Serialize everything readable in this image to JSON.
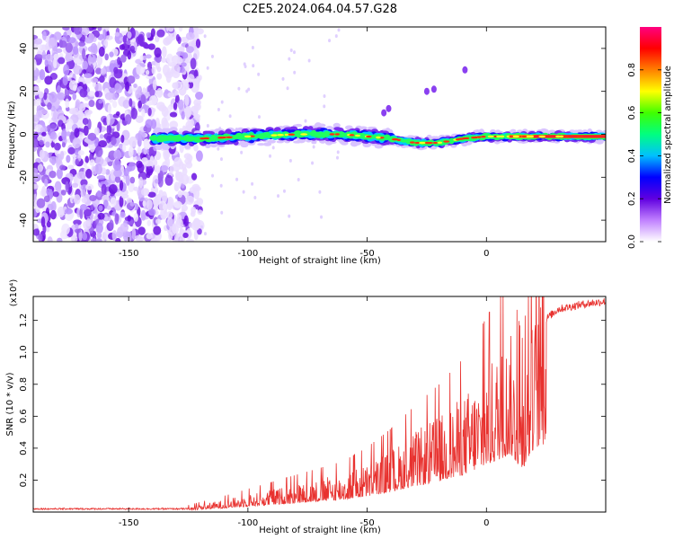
{
  "title": "C2E5.2024.064.04.57.G28",
  "chart_data": [
    {
      "type": "heatmap",
      "xlabel": "Height of straight line (km)",
      "ylabel": "Frequency (Hz)",
      "xlim": [
        -190,
        50
      ],
      "ylim": [
        -50,
        50
      ],
      "x_ticks": [
        -150,
        -100,
        -50,
        0
      ],
      "y_ticks": [
        -40,
        -20,
        0,
        20,
        40
      ],
      "colorbar": {
        "label": "Normalized spectral amplitude",
        "range": [
          0,
          1
        ],
        "ticks": [
          0.0,
          0.2,
          0.4,
          0.6,
          0.8
        ],
        "colormap": [
          "#ffffff",
          "#c080ff",
          "#6000e0",
          "#0000ff",
          "#00c0ff",
          "#00ff80",
          "#40ff00",
          "#ffff00",
          "#ff8000",
          "#ff0000",
          "#ff0080"
        ]
      },
      "ridge_center_hz": [
        {
          "x": -140,
          "y": -2
        },
        {
          "x": -120,
          "y": -2
        },
        {
          "x": -100,
          "y": -1
        },
        {
          "x": -80,
          "y": 0
        },
        {
          "x": -60,
          "y": 0
        },
        {
          "x": -50,
          "y": -1
        },
        {
          "x": -40,
          "y": -2
        },
        {
          "x": -30,
          "y": -4
        },
        {
          "x": -20,
          "y": -4
        },
        {
          "x": -10,
          "y": -2
        },
        {
          "x": 0,
          "y": -1
        },
        {
          "x": 20,
          "y": -1
        },
        {
          "x": 50,
          "y": -1
        }
      ]
    },
    {
      "type": "line",
      "xlabel": "Height of straight line (km)",
      "ylabel": "SNR (10 * v/v)",
      "y_multiplier": "(x10⁴)",
      "xlim": [
        -190,
        50
      ],
      "ylim": [
        0,
        1.35
      ],
      "x_ticks": [
        -150,
        -100,
        -50,
        0
      ],
      "y_ticks": [
        0.2,
        0.4,
        0.6,
        0.8,
        1.0,
        1.2
      ],
      "series": [
        {
          "color": "#e8322f",
          "envelope_x": [
            -190,
            -140,
            -125,
            -110,
            -100,
            -80,
            -60,
            -50,
            -40,
            -30,
            -20,
            -10,
            0,
            10,
            15,
            20,
            30,
            40,
            50
          ],
          "envelope_y": [
            0.02,
            0.02,
            0.03,
            0.07,
            0.1,
            0.16,
            0.22,
            0.28,
            0.36,
            0.46,
            0.55,
            0.66,
            0.84,
            1.03,
            0.75,
            1.15,
            1.27,
            1.3,
            1.32
          ]
        }
      ]
    }
  ]
}
